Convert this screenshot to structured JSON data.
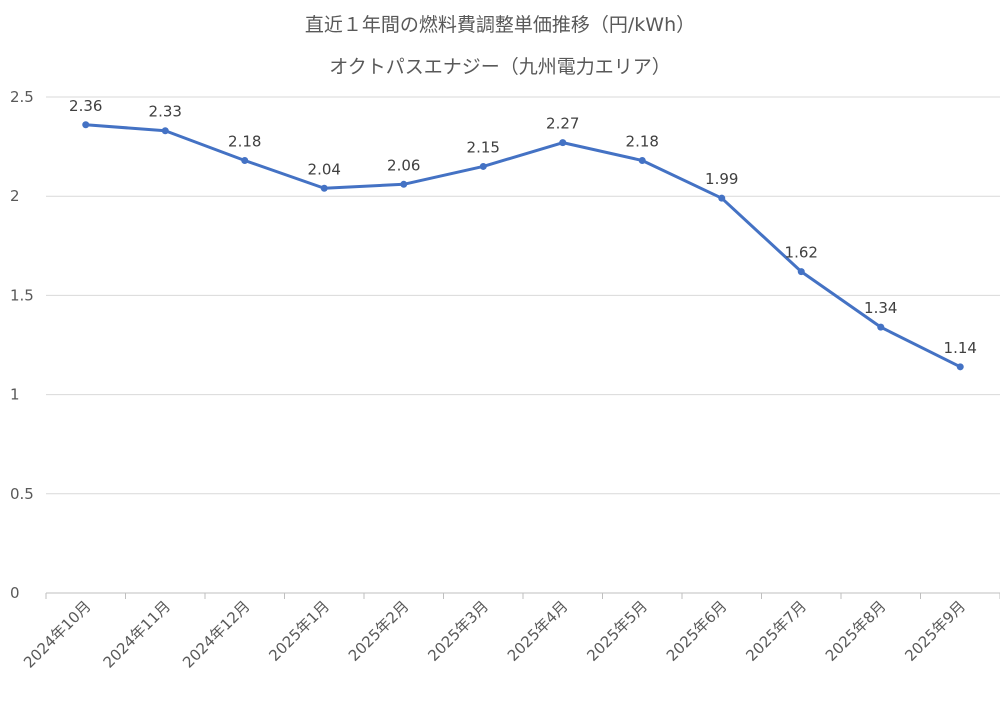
{
  "chart_data": {
    "type": "line",
    "title": "直近１年間の燃料費調整単価推移（円/kWh）",
    "subtitle": "オクトパスエナジー（九州電力エリア）",
    "xlabel": "",
    "ylabel": "",
    "categories": [
      "2024年10月",
      "2024年11月",
      "2024年12月",
      "2025年1月",
      "2025年2月",
      "2025年3月",
      "2025年4月",
      "2025年5月",
      "2025年6月",
      "2025年7月",
      "2025年8月",
      "2025年9月"
    ],
    "series": [
      {
        "values": [
          2.36,
          2.33,
          2.18,
          2.04,
          2.06,
          2.15,
          2.27,
          2.18,
          1.99,
          1.62,
          1.34,
          1.14
        ],
        "labels": [
          "2.36",
          "2.33",
          "2.18",
          "2.04",
          "2.06",
          "2.15",
          "2.27",
          "2.18",
          "1.99",
          "1.62",
          "1.34",
          "1.14"
        ]
      }
    ],
    "ylim": [
      0,
      2.5
    ],
    "yticks": [
      0,
      0.5,
      1,
      1.5,
      2,
      2.5
    ],
    "ytick_labels": [
      "0",
      "0.5",
      "1",
      "1.5",
      "2",
      "2.5"
    ],
    "grid": true,
    "legend": "none",
    "line_color": "#4472c4"
  }
}
